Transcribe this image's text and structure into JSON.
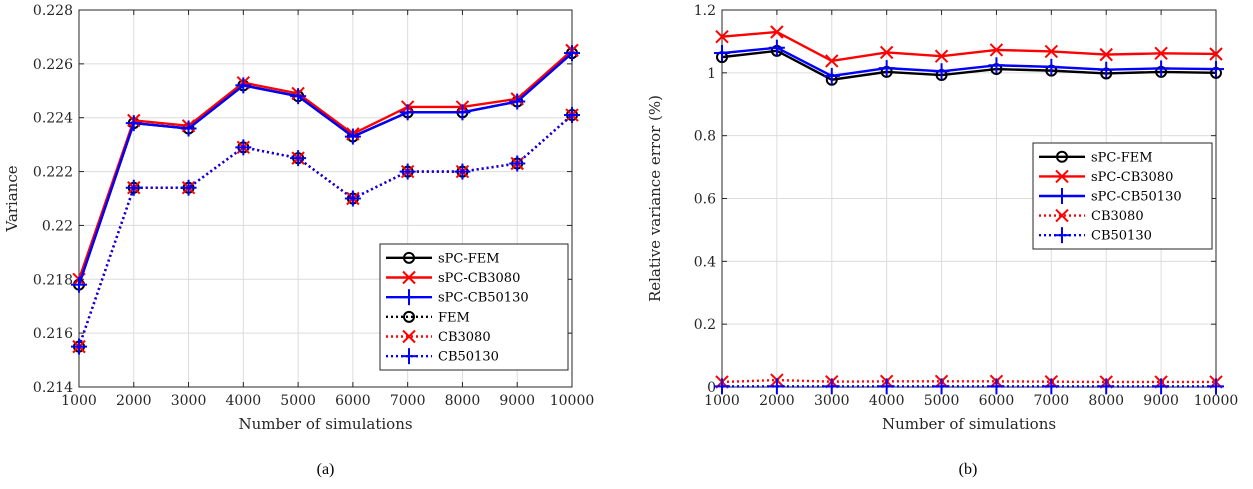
{
  "chart_data": [
    {
      "type": "line",
      "caption": "(a)",
      "xlabel": "Number of simulations",
      "ylabel": "Variance",
      "x": [
        1000,
        2000,
        3000,
        4000,
        5000,
        6000,
        7000,
        8000,
        9000,
        10000
      ],
      "xlim": [
        1000,
        10000
      ],
      "ylim": [
        0.214,
        0.228
      ],
      "xticks": [
        "1000",
        "2000",
        "3000",
        "4000",
        "5000",
        "6000",
        "7000",
        "8000",
        "9000",
        "10000"
      ],
      "yticks": [
        "0.214",
        "0.216",
        "0.218",
        "0.22",
        "0.222",
        "0.224",
        "0.226",
        "0.228"
      ],
      "ytick_values": [
        0.214,
        0.216,
        0.218,
        0.22,
        0.222,
        0.224,
        0.226,
        0.228
      ],
      "grid": true,
      "legend_position": "lower-right",
      "series": [
        {
          "name": "sPC-FEM",
          "color": "#000000",
          "dash": "solid",
          "marker": "circle",
          "values": [
            0.2178,
            0.2238,
            0.2236,
            0.2252,
            0.2248,
            0.2233,
            0.2242,
            0.2242,
            0.2246,
            0.2264
          ]
        },
        {
          "name": "sPC-CB3080",
          "color": "#ff0000",
          "dash": "solid",
          "marker": "x",
          "values": [
            0.218,
            0.2239,
            0.2237,
            0.2253,
            0.2249,
            0.2234,
            0.2244,
            0.2244,
            0.2247,
            0.2265
          ]
        },
        {
          "name": "sPC-CB50130",
          "color": "#0000ff",
          "dash": "solid",
          "marker": "plus",
          "values": [
            0.2178,
            0.2238,
            0.2236,
            0.2252,
            0.2248,
            0.2233,
            0.2242,
            0.2242,
            0.2246,
            0.2264
          ]
        },
        {
          "name": "FEM",
          "color": "#000000",
          "dash": "dotted",
          "marker": "circle",
          "values": [
            0.2155,
            0.2214,
            0.2214,
            0.2229,
            0.2225,
            0.221,
            0.222,
            0.222,
            0.2223,
            0.2241
          ]
        },
        {
          "name": "CB3080",
          "color": "#ff0000",
          "dash": "dotted",
          "marker": "x",
          "values": [
            0.2155,
            0.2214,
            0.2214,
            0.2229,
            0.2225,
            0.221,
            0.222,
            0.222,
            0.2223,
            0.2241
          ]
        },
        {
          "name": "CB50130",
          "color": "#0000ff",
          "dash": "dotted",
          "marker": "plus",
          "values": [
            0.2155,
            0.2214,
            0.2214,
            0.2229,
            0.2225,
            0.221,
            0.222,
            0.222,
            0.2223,
            0.2241
          ]
        }
      ]
    },
    {
      "type": "line",
      "caption": "(b)",
      "xlabel": "Number of simulations",
      "ylabel": "Relative variance error (%)",
      "x": [
        1000,
        2000,
        3000,
        4000,
        5000,
        6000,
        7000,
        8000,
        9000,
        10000
      ],
      "xlim": [
        1000,
        10000
      ],
      "ylim": [
        0,
        1.2
      ],
      "xticks": [
        "1000",
        "2000",
        "3000",
        "4000",
        "5000",
        "6000",
        "7000",
        "8000",
        "9000",
        "10000"
      ],
      "yticks": [
        "0",
        "0.2",
        "0.4",
        "0.6",
        "0.8",
        "1",
        "1.2"
      ],
      "ytick_values": [
        0,
        0.2,
        0.4,
        0.6,
        0.8,
        1.0,
        1.2
      ],
      "grid": true,
      "legend_position": "center-right",
      "series": [
        {
          "name": "sPC-FEM",
          "color": "#000000",
          "dash": "solid",
          "marker": "circle",
          "values": [
            1.05,
            1.07,
            0.978,
            1.003,
            0.993,
            1.012,
            1.007,
            0.998,
            1.003,
            1.0
          ]
        },
        {
          "name": "sPC-CB3080",
          "color": "#ff0000",
          "dash": "solid",
          "marker": "x",
          "values": [
            1.115,
            1.13,
            1.038,
            1.065,
            1.053,
            1.073,
            1.068,
            1.058,
            1.062,
            1.06
          ]
        },
        {
          "name": "sPC-CB50130",
          "color": "#0000ff",
          "dash": "solid",
          "marker": "plus",
          "values": [
            1.063,
            1.08,
            0.99,
            1.015,
            1.005,
            1.024,
            1.019,
            1.01,
            1.014,
            1.012
          ]
        },
        {
          "name": "CB3080",
          "color": "#ff0000",
          "dash": "dotted",
          "marker": "x",
          "values": [
            0.016,
            0.022,
            0.017,
            0.018,
            0.018,
            0.018,
            0.017,
            0.016,
            0.016,
            0.016
          ]
        },
        {
          "name": "CB50130",
          "color": "#0000ff",
          "dash": "dotted",
          "marker": "plus",
          "values": [
            0.002,
            0.002,
            0.002,
            0.002,
            0.002,
            0.002,
            0.002,
            0.002,
            0.002,
            0.002
          ]
        }
      ]
    }
  ]
}
